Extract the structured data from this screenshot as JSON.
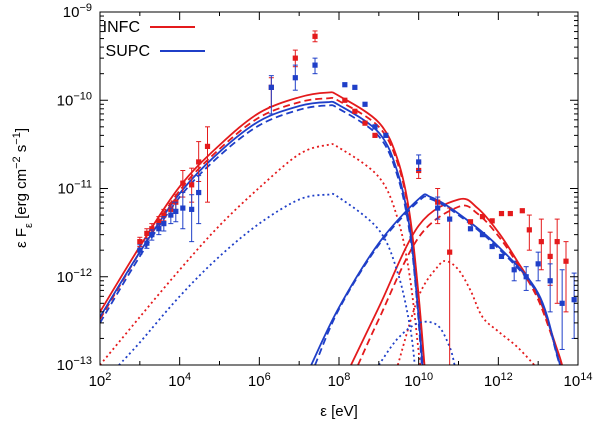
{
  "chart_data": {
    "type": "line",
    "title": "",
    "xlabel": "ε [eV]",
    "ylabel": "ε F_ε [erg cm^-2 s^-1]",
    "x_scale": "log",
    "y_scale": "log",
    "xlim": [
      100,
      100000000000000
    ],
    "ylim": [
      1e-13,
      1e-09
    ],
    "grid": false,
    "legend_position": "top-left",
    "x_tick_labels": [
      {
        "base": "10",
        "exp": "2",
        "value": 100
      },
      {
        "base": "10",
        "exp": "4",
        "value": 10000
      },
      {
        "base": "10",
        "exp": "6",
        "value": 1000000
      },
      {
        "base": "10",
        "exp": "8",
        "value": 100000000
      },
      {
        "base": "10",
        "exp": "10",
        "value": 10000000000
      },
      {
        "base": "10",
        "exp": "12",
        "value": 1000000000000
      },
      {
        "base": "10",
        "exp": "14",
        "value": 100000000000000
      }
    ],
    "y_tick_labels": [
      {
        "base": "10",
        "exp": "-13",
        "value": 1e-13
      },
      {
        "base": "10",
        "exp": "-12",
        "value": 1e-12
      },
      {
        "base": "10",
        "exp": "-11",
        "value": 1e-11
      },
      {
        "base": "10",
        "exp": "-10",
        "value": 1e-10
      },
      {
        "base": "10",
        "exp": "-9",
        "value": 1e-09
      }
    ],
    "legend": [
      {
        "label": "INFC",
        "color": "#e41a1c"
      },
      {
        "label": "SUPC",
        "color": "#1f3fc8"
      }
    ],
    "series": [
      {
        "name": "INFC",
        "style": "solid",
        "color": "#e41a1c",
        "points": [
          [
            100,
            4e-13
          ],
          [
            1000,
            2.2e-12
          ],
          [
            10000,
            1.05e-11
          ],
          [
            100000,
            3.1e-11
          ],
          [
            1000000,
            7.2e-11
          ],
          [
            10000000,
            1.08e-10
          ],
          [
            50000000,
            1.22e-10
          ],
          [
            100000000,
            1.12e-10
          ],
          [
            1000000000,
            5.6e-11
          ],
          [
            3000000000,
            2.1e-11
          ],
          [
            6000000000,
            5e-12
          ],
          [
            10000000000,
            6e-13
          ],
          [
            14000000000,
            1e-13
          ]
        ]
      },
      {
        "style": "dashed",
        "color": "#e41a1c",
        "points": [
          [
            100,
            3.3e-13
          ],
          [
            1000,
            1.9e-12
          ],
          [
            10000,
            9.5e-12
          ],
          [
            100000,
            2.8e-11
          ],
          [
            1000000,
            6.4e-11
          ],
          [
            10000000,
            9.5e-11
          ],
          [
            50000000,
            1.05e-10
          ],
          [
            100000000,
            9.8e-11
          ],
          [
            1000000000,
            5e-11
          ],
          [
            3000000000,
            1.9e-11
          ],
          [
            6000000000,
            4.5e-12
          ],
          [
            10000000000,
            5.5e-13
          ],
          [
            13500000000,
            1e-13
          ]
        ]
      },
      {
        "style": "dotted",
        "color": "#e41a1c",
        "points": [
          [
            100,
            1e-13
          ],
          [
            1000,
            3.5e-13
          ],
          [
            10000,
            1.2e-12
          ],
          [
            100000,
            3.8e-12
          ],
          [
            1000000,
            1.02e-11
          ],
          [
            10000000,
            2.45e-11
          ],
          [
            50000000,
            3.1e-11
          ],
          [
            100000000,
            2.9e-11
          ],
          [
            1000000000,
            1.35e-11
          ],
          [
            3000000000,
            4.5e-12
          ],
          [
            6000000000,
            1e-12
          ],
          [
            10000000000,
            1.4e-13
          ],
          [
            11000000000,
            1e-13
          ]
        ]
      },
      {
        "style": "solid",
        "color": "#e41a1c",
        "points": [
          [
            200000000,
            1e-13
          ],
          [
            1000000000,
            4.5e-13
          ],
          [
            10000000000,
            3.8e-12
          ],
          [
            100000000000,
            7.5e-12
          ],
          [
            300000000000,
            6e-12
          ],
          [
            1000000000000,
            3.2e-12
          ],
          [
            3000000000000,
            1.5e-12
          ],
          [
            10000000000000,
            6e-13
          ],
          [
            30000000000000,
            1.5e-13
          ],
          [
            40000000000000,
            1e-13
          ]
        ]
      },
      {
        "style": "dashed",
        "color": "#e41a1c",
        "points": [
          [
            300000000,
            1e-13
          ],
          [
            1000000000,
            3.3e-13
          ],
          [
            10000000000,
            2.8e-12
          ],
          [
            100000000000,
            6.2e-12
          ],
          [
            300000000000,
            5.2e-12
          ],
          [
            1000000000000,
            2.9e-12
          ],
          [
            3000000000000,
            1.4e-12
          ],
          [
            10000000000000,
            5.5e-13
          ],
          [
            30000000000000,
            1.4e-13
          ],
          [
            38000000000000,
            1e-13
          ]
        ]
      },
      {
        "style": "dotted",
        "color": "#e41a1c",
        "points": [
          [
            3000000000,
            1e-13
          ],
          [
            10000000000,
            6e-13
          ],
          [
            30000000000,
            1.3e-12
          ],
          [
            50000000000,
            1.5e-12
          ],
          [
            100000000000,
            1.2e-12
          ],
          [
            200000000000,
            7e-13
          ],
          [
            400000000000,
            3.5e-13
          ],
          [
            1000000000000,
            2.4e-13
          ],
          [
            3000000000000,
            1.6e-13
          ],
          [
            8000000000000,
            1e-13
          ]
        ]
      },
      {
        "name": "SUPC",
        "style": "solid",
        "color": "#1f3fc8",
        "points": [
          [
            100,
            3.5e-13
          ],
          [
            1000,
            1.9e-12
          ],
          [
            10000,
            8.8e-12
          ],
          [
            100000,
            2.6e-11
          ],
          [
            1000000,
            5.8e-11
          ],
          [
            10000000,
            8.6e-11
          ],
          [
            50000000,
            9.5e-11
          ],
          [
            100000000,
            8.8e-11
          ],
          [
            1000000000,
            4.3e-11
          ],
          [
            3000000000,
            1.5e-11
          ],
          [
            6000000000,
            3.5e-12
          ],
          [
            9000000000,
            6e-13
          ],
          [
            12500000000,
            1e-13
          ]
        ]
      },
      {
        "style": "dashed",
        "color": "#1f3fc8",
        "points": [
          [
            100,
            3e-13
          ],
          [
            1000,
            1.7e-12
          ],
          [
            10000,
            8e-12
          ],
          [
            100000,
            2.35e-11
          ],
          [
            1000000,
            5.2e-11
          ],
          [
            10000000,
            7.8e-11
          ],
          [
            50000000,
            8.7e-11
          ],
          [
            100000000,
            8e-11
          ],
          [
            1000000000,
            3.9e-11
          ],
          [
            3000000000,
            1.35e-11
          ],
          [
            6000000000,
            3.1e-12
          ],
          [
            9000000000,
            5.5e-13
          ],
          [
            12000000000,
            1e-13
          ]
        ]
      },
      {
        "style": "dotted",
        "color": "#1f3fc8",
        "points": [
          [
            300,
            1e-13
          ],
          [
            1000,
            1.8e-13
          ],
          [
            10000,
            6e-13
          ],
          [
            100000,
            1.7e-12
          ],
          [
            1000000,
            4e-12
          ],
          [
            10000000,
            7.5e-12
          ],
          [
            50000000,
            8.5e-12
          ],
          [
            100000000,
            7.9e-12
          ],
          [
            1000000000,
            3.4e-12
          ],
          [
            3000000000,
            1.1e-12
          ],
          [
            6000000000,
            2.8e-13
          ],
          [
            8000000000,
            1e-13
          ]
        ]
      },
      {
        "style": "solid",
        "color": "#1f3fc8",
        "points": [
          [
            20000000,
            1e-13
          ],
          [
            100000000,
            4.5e-13
          ],
          [
            1000000000,
            2.4e-12
          ],
          [
            10000000000,
            7.6e-12
          ],
          [
            20000000000,
            8e-12
          ],
          [
            100000000000,
            5.2e-12
          ],
          [
            1000000000000,
            2.2e-12
          ],
          [
            10000000000000,
            6.5e-13
          ],
          [
            30000000000000,
            1.3e-13
          ],
          [
            35000000000000,
            1e-13
          ]
        ]
      },
      {
        "style": "dashed",
        "color": "#1f3fc8",
        "points": [
          [
            25000000,
            1e-13
          ],
          [
            100000000,
            4.3e-13
          ],
          [
            1000000000,
            2.3e-12
          ],
          [
            10000000000,
            7.2e-12
          ],
          [
            20000000000,
            7.6e-12
          ],
          [
            100000000000,
            5e-12
          ],
          [
            1000000000000,
            2.1e-12
          ],
          [
            10000000000000,
            6.2e-13
          ],
          [
            30000000000000,
            1.25e-13
          ],
          [
            34000000000000,
            1e-13
          ]
        ]
      },
      {
        "style": "dotted",
        "color": "#1f3fc8",
        "points": [
          [
            1000000000,
            1e-13
          ],
          [
            3000000000,
            2e-13
          ],
          [
            10000000000,
            3e-13
          ],
          [
            30000000000,
            2.8e-13
          ],
          [
            60000000000,
            1.6e-13
          ],
          [
            80000000000,
            1e-13
          ]
        ]
      }
    ],
    "data_points": [
      {
        "series": "INFC",
        "color": "#e41a1c",
        "points": [
          {
            "x": 1000,
            "y": 2.5e-12,
            "lo": 2.2e-12,
            "hi": 2.8e-12
          },
          {
            "x": 1500,
            "y": 3.1e-12,
            "lo": 2.7e-12,
            "hi": 3.5e-12
          },
          {
            "x": 2000,
            "y": 3.5e-12,
            "lo": 3.1e-12,
            "hi": 4e-12
          },
          {
            "x": 3000,
            "y": 4.2e-12,
            "lo": 3.7e-12,
            "hi": 4.8e-12
          },
          {
            "x": 4000,
            "y": 5e-12,
            "lo": 4.3e-12,
            "hi": 5.8e-12
          },
          {
            "x": 6000,
            "y": 5.8e-12,
            "lo": 4.9e-12,
            "hi": 6.8e-12
          },
          {
            "x": 8000,
            "y": 7e-12,
            "lo": 5.8e-12,
            "hi": 8.5e-12
          },
          {
            "x": 12000,
            "y": 1.15e-11,
            "lo": 8e-12,
            "hi": 1.6e-11
          },
          {
            "x": 20000,
            "y": 1.1e-11,
            "lo": 7e-12,
            "hi": 1.7e-11
          },
          {
            "x": 30000,
            "y": 2e-11,
            "lo": 1.2e-11,
            "hi": 3.4e-11
          },
          {
            "x": 50000,
            "y": 3e-11,
            "lo": 7e-12,
            "hi": 5e-11
          },
          {
            "x": 2000000,
            "y": 1.4e-10,
            "lo": 8.5e-11,
            "hi": 1.8e-10
          },
          {
            "x": 8000000,
            "y": 3e-10,
            "lo": 2.4e-10,
            "hi": 3.7e-10
          },
          {
            "x": 25000000,
            "y": 5.3e-10,
            "lo": 4.6e-10,
            "hi": 6.1e-10
          },
          {
            "x": 140000000,
            "y": 1e-10
          },
          {
            "x": 250000000,
            "y": 7.5e-11
          },
          {
            "x": 450000000,
            "y": 5.5e-11
          },
          {
            "x": 800000000,
            "y": 4e-11
          },
          {
            "x": 10000000000,
            "y": 1.6e-11,
            "lo": 1.3e-11,
            "hi": 2e-11
          },
          {
            "x": 30000000000,
            "y": 7e-12,
            "lo": 4e-12,
            "hi": 1e-11
          },
          {
            "x": 60000000000,
            "y": 1.9e-12,
            "lo": 1e-13,
            "hi": 6e-12
          },
          {
            "x": 200000000000,
            "y": 4.2e-12
          },
          {
            "x": 400000000000,
            "y": 4.8e-12
          },
          {
            "x": 700000000000,
            "y": 4.3e-12
          },
          {
            "x": 1200000000000,
            "y": 5.2e-12
          },
          {
            "x": 2000000000000,
            "y": 5.2e-12
          },
          {
            "x": 4000000000000,
            "y": 5.6e-12
          },
          {
            "x": 6000000000000,
            "y": 3.4e-12,
            "lo": 2e-12,
            "hi": 5e-12
          },
          {
            "x": 12000000000000,
            "y": 2.5e-12,
            "lo": 1.2e-12,
            "hi": 4.5e-12
          },
          {
            "x": 20000000000000,
            "y": 1.7e-12,
            "lo": 8e-13,
            "hi": 3.2e-12
          },
          {
            "x": 30000000000000,
            "y": 2.5e-12,
            "lo": 5e-13,
            "hi": 4.5e-12
          },
          {
            "x": 50000000000000,
            "y": 1.5e-12,
            "lo": 4e-13,
            "hi": 2.5e-12
          }
        ]
      },
      {
        "series": "SUPC",
        "color": "#1f3fc8",
        "points": [
          {
            "x": 1000,
            "y": 2e-12,
            "lo": 1.8e-12,
            "hi": 2.3e-12
          },
          {
            "x": 1500,
            "y": 2.4e-12,
            "lo": 2.1e-12,
            "hi": 2.7e-12
          },
          {
            "x": 2000,
            "y": 3e-12,
            "lo": 2.6e-12,
            "hi": 3.4e-12
          },
          {
            "x": 3000,
            "y": 3.5e-12,
            "lo": 3e-12,
            "hi": 4e-12
          },
          {
            "x": 4000,
            "y": 4e-12,
            "lo": 3.3e-12,
            "hi": 4.8e-12
          },
          {
            "x": 6000,
            "y": 5e-12,
            "lo": 4e-12,
            "hi": 6e-12
          },
          {
            "x": 8000,
            "y": 5.5e-12,
            "lo": 4.2e-12,
            "hi": 7e-12
          },
          {
            "x": 12000,
            "y": 6e-12,
            "lo": 3.5e-12,
            "hi": 9e-12
          },
          {
            "x": 20000,
            "y": 5.8e-12,
            "lo": 2.5e-12,
            "hi": 8.5e-12
          },
          {
            "x": 30000,
            "y": 9e-12,
            "lo": 4e-12,
            "hi": 1.4e-11
          },
          {
            "x": 2000000,
            "y": 1.4e-10,
            "lo": 7e-11,
            "hi": 1.9e-10
          },
          {
            "x": 8000000,
            "y": 1.8e-10,
            "lo": 1.3e-10,
            "hi": 2.5e-10
          },
          {
            "x": 25000000,
            "y": 2.5e-10,
            "lo": 2e-10,
            "hi": 3e-10
          },
          {
            "x": 140000000,
            "y": 1.5e-10
          },
          {
            "x": 250000000,
            "y": 1.4e-10
          },
          {
            "x": 450000000,
            "y": 9e-11
          },
          {
            "x": 800000000,
            "y": 5e-11
          },
          {
            "x": 1500000000,
            "y": 4e-11
          },
          {
            "x": 10000000000,
            "y": 2e-11,
            "lo": 1.6e-11,
            "hi": 2.4e-11
          },
          {
            "x": 30000000000,
            "y": 6e-12,
            "lo": 4.5e-12,
            "hi": 8e-12
          },
          {
            "x": 60000000000,
            "y": 4.5e-12
          },
          {
            "x": 200000000000,
            "y": 3.5e-12
          },
          {
            "x": 400000000000,
            "y": 3e-12
          },
          {
            "x": 700000000000,
            "y": 2.2e-12
          },
          {
            "x": 1200000000000,
            "y": 1.7e-12
          },
          {
            "x": 2500000000000,
            "y": 1.2e-12,
            "lo": 9e-13,
            "hi": 1.5e-12
          },
          {
            "x": 5000000000000,
            "y": 1e-12,
            "lo": 7e-13,
            "hi": 1.3e-12
          },
          {
            "x": 10000000000000,
            "y": 1.4e-12,
            "lo": 9e-13,
            "hi": 1.9e-12
          },
          {
            "x": 20000000000000,
            "y": 9e-13,
            "lo": 4e-13,
            "hi": 1.4e-12
          },
          {
            "x": 40000000000000,
            "y": 5e-13,
            "lo": 1.5e-13,
            "hi": 1.2e-12
          },
          {
            "x": 80000000000000,
            "y": 5.5e-13,
            "lo": 2e-13,
            "hi": 1.1e-12
          }
        ]
      }
    ]
  }
}
